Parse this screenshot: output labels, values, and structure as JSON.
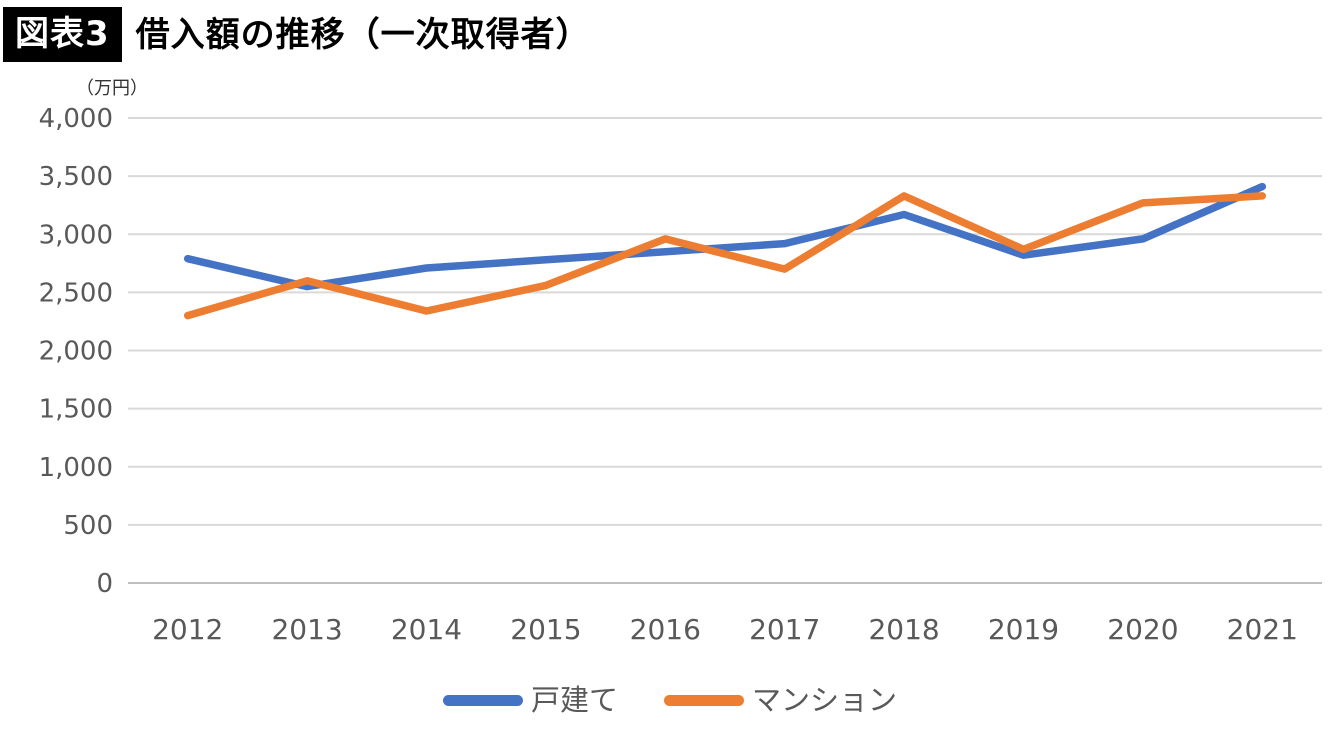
{
  "figure": {
    "tag": "図表3",
    "title": "借入額の推移（一次取得者）",
    "unit_label": "（万円）"
  },
  "chart_data": {
    "type": "line",
    "title": "借入額の推移（一次取得者）",
    "ylabel": "（万円）",
    "xlabel": "",
    "categories": [
      "2012",
      "2013",
      "2014",
      "2015",
      "2016",
      "2017",
      "2018",
      "2019",
      "2020",
      "2021"
    ],
    "series": [
      {
        "name": "戸建て",
        "color": "#4472C4",
        "values": [
          2790,
          2550,
          2710,
          2780,
          2850,
          2920,
          3170,
          2820,
          2960,
          3410
        ]
      },
      {
        "name": "マンション",
        "color": "#ED7D31",
        "values": [
          2300,
          2600,
          2340,
          2560,
          2960,
          2700,
          3330,
          2870,
          3270,
          3330
        ]
      }
    ],
    "ylim": [
      0,
      4000
    ],
    "ytick_step": 500,
    "grid": true,
    "legend_position": "bottom"
  },
  "colors": {
    "gridline": "#D9D9D9",
    "axis_line": "#BFBFBF",
    "axis_text": "#595959",
    "tag_bg": "#000000",
    "tag_text": "#FFFFFF",
    "background": "#FFFFFF"
  }
}
